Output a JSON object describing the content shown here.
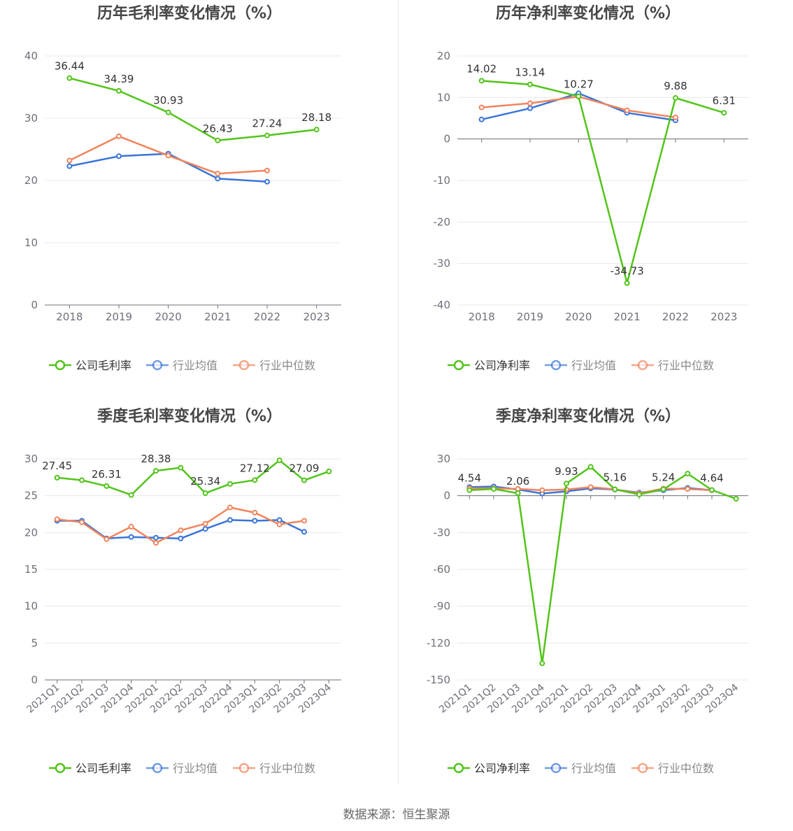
{
  "colors": {
    "company": "#52c41a",
    "avg": "#3a74d8",
    "median": "#f0845c",
    "axis": "#6e7079",
    "grid": "#e8e8ee",
    "label": "#333333"
  },
  "source": "数据来源：恒生聚源",
  "chart_data": [
    {
      "type": "line",
      "title": "历年毛利率变化情况（%）",
      "categories": [
        "2018",
        "2019",
        "2020",
        "2021",
        "2022",
        "2023"
      ],
      "ylim": [
        0,
        40
      ],
      "yticks": [
        0,
        10,
        20,
        30,
        40
      ],
      "series": [
        {
          "name": "公司毛利率",
          "key": "company",
          "values": [
            36.44,
            34.39,
            30.93,
            26.43,
            27.24,
            28.18
          ],
          "labels": [
            "36.44",
            "34.39",
            "30.93",
            "26.43",
            "27.24",
            "28.18"
          ]
        },
        {
          "name": "行业均值",
          "key": "avg",
          "values": [
            22.3,
            23.9,
            24.3,
            20.3,
            19.8,
            null
          ]
        },
        {
          "name": "行业中位数",
          "key": "median",
          "values": [
            23.2,
            27.1,
            24.0,
            21.1,
            21.6,
            null
          ]
        }
      ]
    },
    {
      "type": "line",
      "title": "历年净利率变化情况（%）",
      "categories": [
        "2018",
        "2019",
        "2020",
        "2021",
        "2022",
        "2023"
      ],
      "ylim": [
        -40,
        20
      ],
      "yticks": [
        -40,
        -30,
        -20,
        -10,
        0,
        10,
        20
      ],
      "series": [
        {
          "name": "公司净利率",
          "key": "company",
          "values": [
            14.02,
            13.14,
            10.27,
            -34.73,
            9.88,
            6.31
          ],
          "labels": [
            "14.02",
            "13.14",
            "10.27",
            "-34.73",
            "9.88",
            "6.31"
          ]
        },
        {
          "name": "行业均值",
          "key": "avg",
          "values": [
            4.7,
            7.4,
            11.0,
            6.3,
            4.5,
            null
          ]
        },
        {
          "name": "行业中位数",
          "key": "median",
          "values": [
            7.6,
            8.6,
            10.2,
            6.9,
            5.2,
            null
          ]
        }
      ]
    },
    {
      "type": "line",
      "title": "季度毛利率变化情况（%）",
      "categories": [
        "2021Q1",
        "2021Q2",
        "2021Q3",
        "2021Q4",
        "2022Q1",
        "2022Q2",
        "2022Q3",
        "2022Q4",
        "2023Q1",
        "2023Q2",
        "2023Q3",
        "2023Q4"
      ],
      "ylim": [
        0,
        30
      ],
      "yticks": [
        0,
        5,
        10,
        15,
        20,
        25,
        30
      ],
      "series": [
        {
          "name": "公司毛利率",
          "key": "company",
          "values": [
            27.45,
            27.1,
            26.31,
            25.1,
            28.38,
            28.8,
            25.34,
            26.6,
            27.12,
            29.8,
            27.09,
            28.3
          ],
          "labels": [
            "27.45",
            "",
            "26.31",
            "",
            "28.38",
            "",
            "25.34",
            "",
            "27.12",
            "",
            "27.09",
            ""
          ]
        },
        {
          "name": "行业均值",
          "key": "avg",
          "values": [
            21.6,
            21.6,
            19.2,
            19.4,
            19.3,
            19.2,
            20.5,
            21.7,
            21.6,
            21.7,
            20.1,
            null
          ]
        },
        {
          "name": "行业中位数",
          "key": "median",
          "values": [
            21.8,
            21.4,
            19.1,
            20.8,
            18.6,
            20.3,
            21.2,
            23.4,
            22.7,
            21.1,
            21.6,
            null
          ]
        }
      ]
    },
    {
      "type": "line",
      "title": "季度净利率变化情况（%）",
      "categories": [
        "2021Q1",
        "2021Q2",
        "2021Q3",
        "2021Q4",
        "2022Q1",
        "2022Q2",
        "2022Q3",
        "2022Q4",
        "2023Q1",
        "2023Q2",
        "2023Q3",
        "2023Q4"
      ],
      "ylim": [
        -150,
        30
      ],
      "yticks": [
        -150,
        -120,
        -90,
        -60,
        -30,
        0,
        30
      ],
      "series": [
        {
          "name": "公司净利率",
          "key": "company",
          "values": [
            4.54,
            5.5,
            2.06,
            -136.5,
            9.93,
            23.5,
            5.16,
            1.0,
            5.24,
            18.0,
            4.64,
            -2.5
          ],
          "labels": [
            "4.54",
            "",
            "2.06",
            "",
            "9.93",
            "",
            "5.16",
            "",
            "5.24",
            "",
            "4.64",
            ""
          ]
        },
        {
          "name": "行业均值",
          "key": "avg",
          "values": [
            7.0,
            7.5,
            5.0,
            1.8,
            3.5,
            6.0,
            5.0,
            2.5,
            4.5,
            6.3,
            4.5,
            null
          ]
        },
        {
          "name": "行业中位数",
          "key": "median",
          "values": [
            6.0,
            6.0,
            5.5,
            4.5,
            5.0,
            7.0,
            5.2,
            2.0,
            5.8,
            5.5,
            4.4,
            null
          ]
        }
      ]
    }
  ]
}
